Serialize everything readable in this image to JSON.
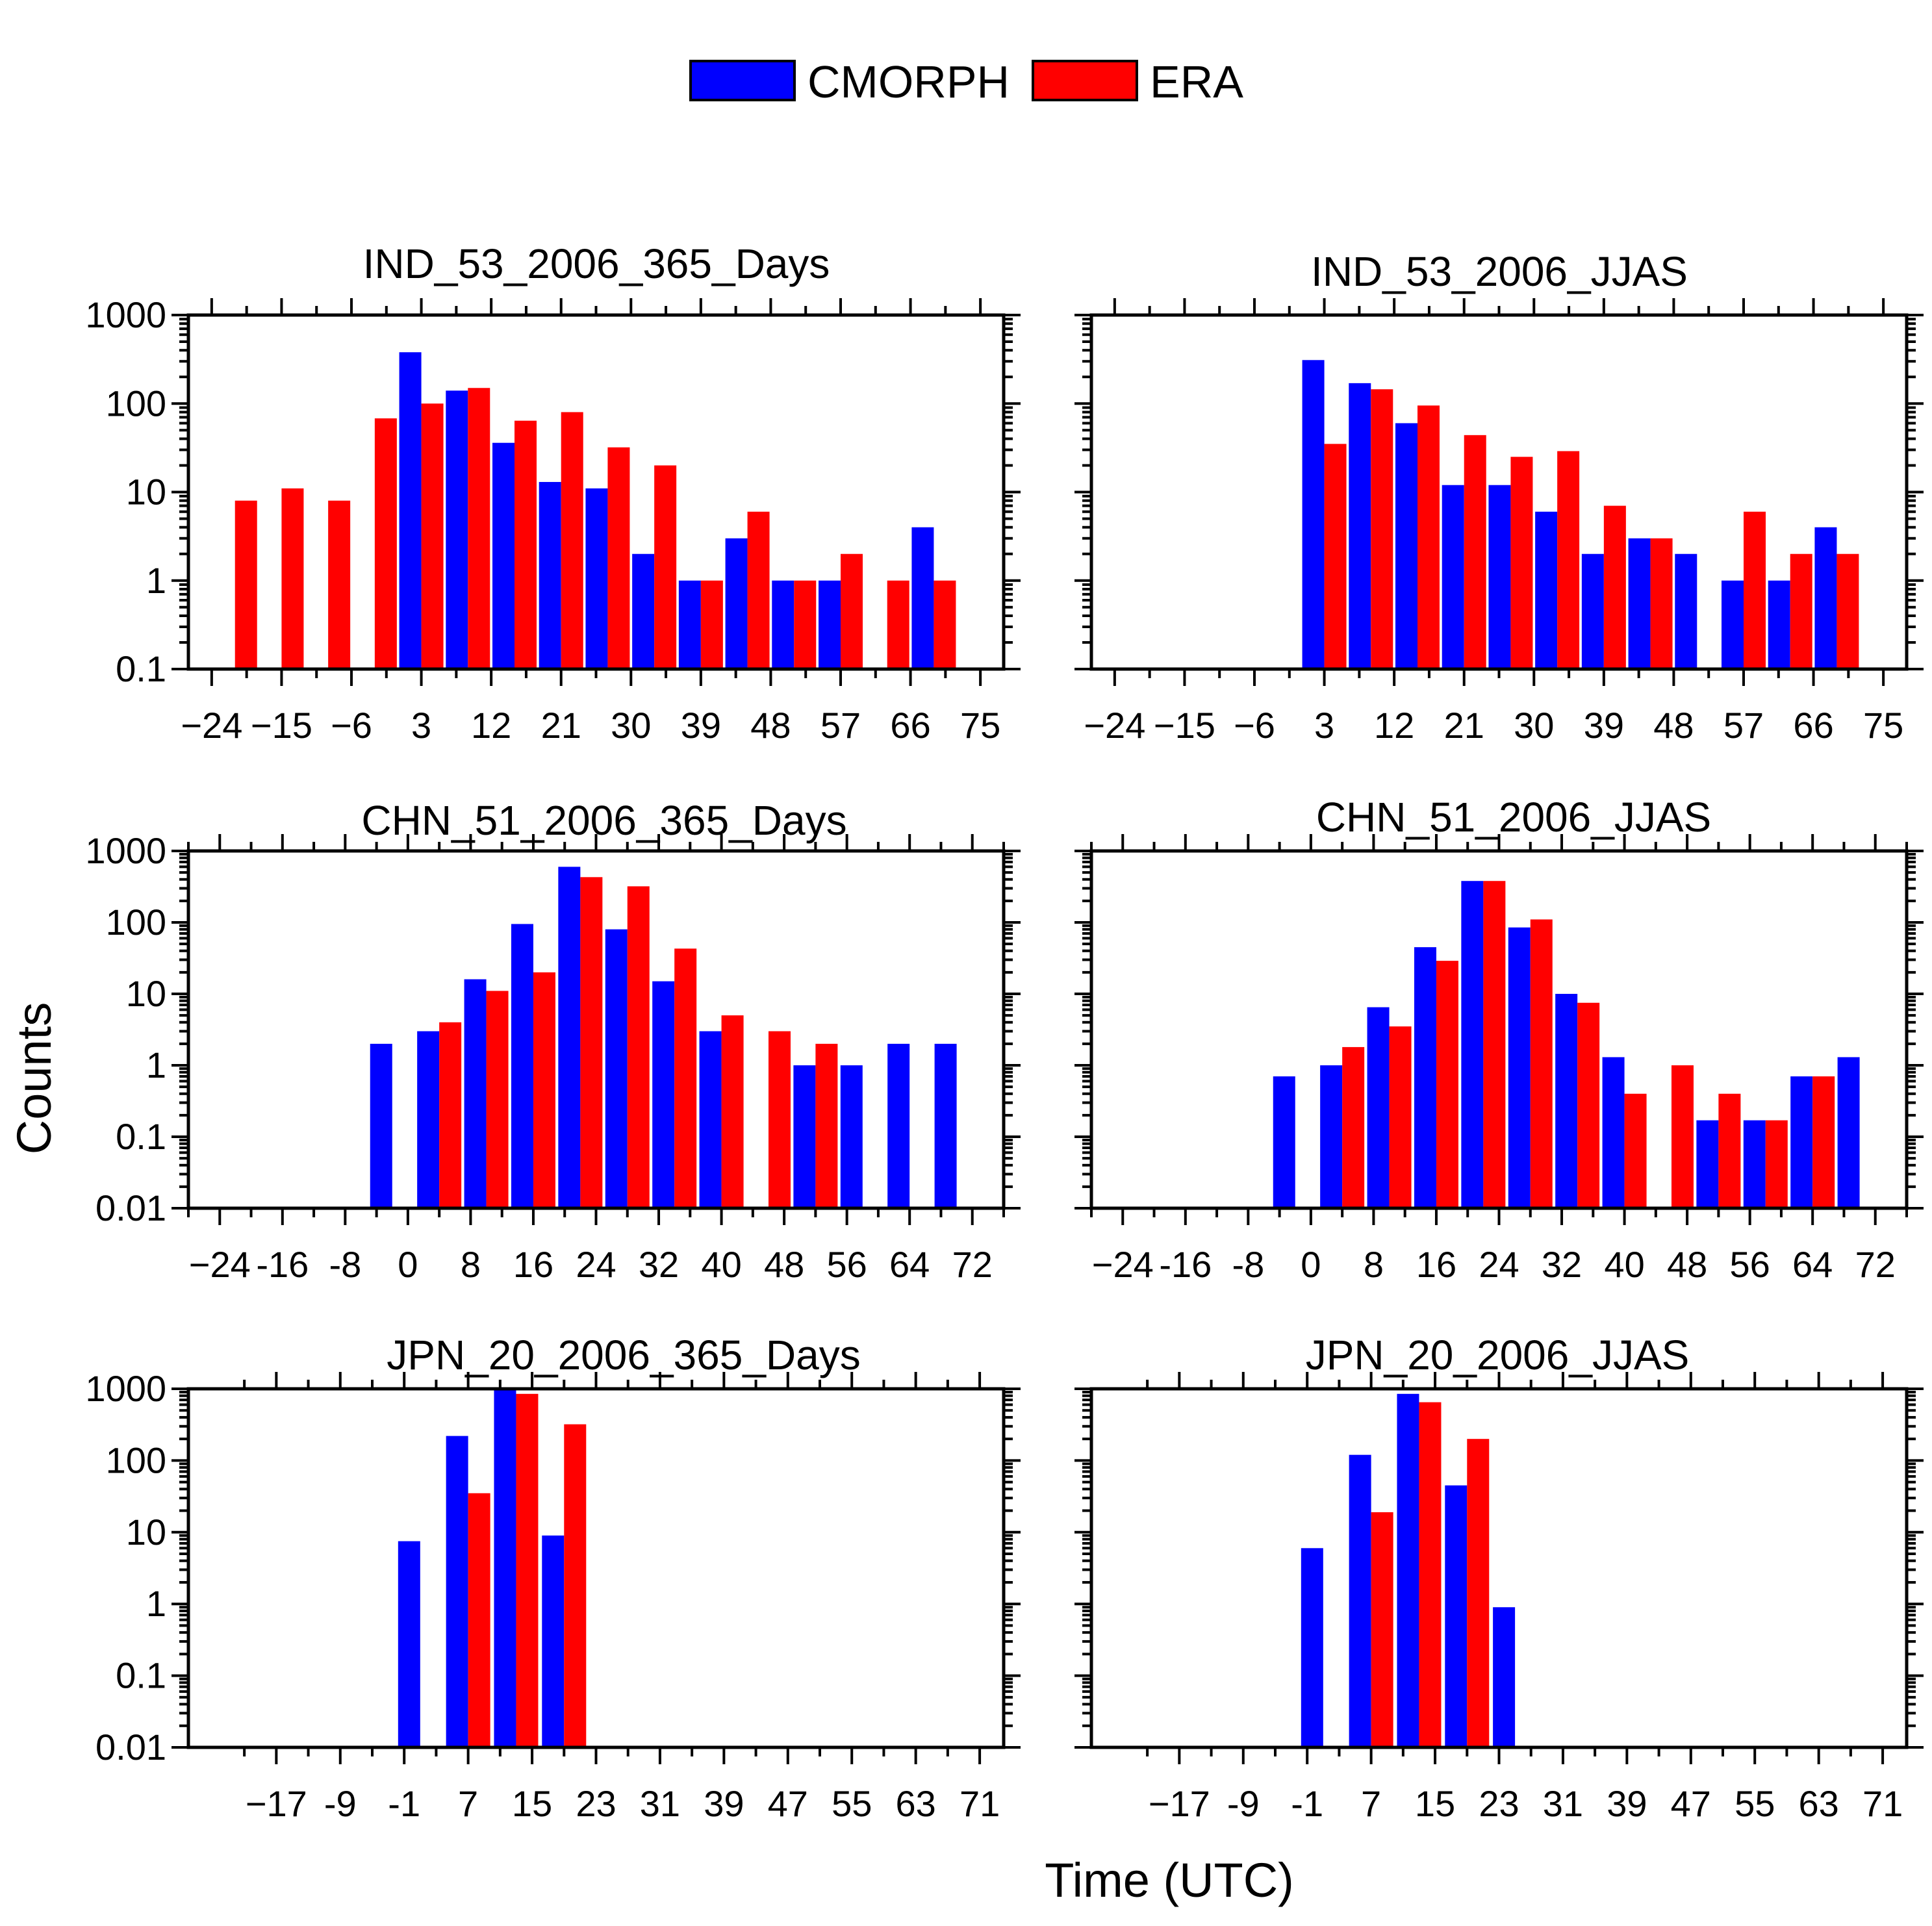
{
  "legend": {
    "items": [
      {
        "label": "CMORPH",
        "color": "#0000ff"
      },
      {
        "label": "ERA",
        "color": "#ff0000"
      }
    ]
  },
  "ylabel": "Counts",
  "xlabel": "Time (UTC)",
  "chart_data": [
    {
      "type": "bar",
      "title": "IND_53_2006_365_Days",
      "yscale": "log",
      "ylim": [
        0.1,
        1000
      ],
      "yticks": [
        0.1,
        1,
        10,
        100,
        1000
      ],
      "ytick_labels": [
        "0.1",
        "1",
        "10",
        "100",
        "1000"
      ],
      "xlim": [
        -27,
        78
      ],
      "xticks": [
        -24,
        -15,
        -6,
        3,
        12,
        21,
        30,
        39,
        48,
        57,
        66,
        75
      ],
      "xtick_labels": [
        "−24",
        "−15",
        "−6",
        "3",
        "12",
        "21",
        "30",
        "39",
        "48",
        "57",
        "66",
        "75"
      ],
      "x": [
        -21,
        -15,
        -9,
        -3,
        3,
        9,
        15,
        21,
        27,
        33,
        39,
        45,
        51,
        57,
        63,
        69
      ],
      "series": [
        {
          "name": "CMORPH",
          "values": [
            null,
            null,
            null,
            null,
            380,
            140,
            36,
            13,
            11,
            2,
            1,
            3,
            1,
            1,
            null,
            4
          ]
        },
        {
          "name": "ERA",
          "values": [
            8,
            11,
            8,
            68,
            100,
            150,
            64,
            80,
            32,
            20,
            1,
            6,
            1,
            2,
            1,
            1
          ]
        }
      ]
    },
    {
      "type": "bar",
      "title": "IND_53_2006_JJAS",
      "yscale": "log",
      "ylim": [
        0.1,
        1000
      ],
      "yticks": [
        0.1,
        1,
        10,
        100,
        1000
      ],
      "ytick_labels": [],
      "xlim": [
        -27,
        78
      ],
      "xticks": [
        -24,
        -15,
        -6,
        3,
        12,
        21,
        30,
        39,
        48,
        57,
        66,
        75
      ],
      "xtick_labels": [
        "−24",
        "−15",
        "−6",
        "3",
        "12",
        "21",
        "30",
        "39",
        "48",
        "57",
        "66",
        "75"
      ],
      "x": [
        -21,
        -15,
        -9,
        -3,
        3,
        9,
        15,
        21,
        27,
        33,
        39,
        45,
        51,
        57,
        63,
        69
      ],
      "series": [
        {
          "name": "CMORPH",
          "values": [
            null,
            null,
            null,
            null,
            310,
            170,
            60,
            12,
            12,
            6,
            2,
            3,
            2,
            1,
            1,
            4
          ]
        },
        {
          "name": "ERA",
          "values": [
            null,
            null,
            null,
            null,
            35,
            145,
            95,
            44,
            25,
            29,
            7,
            3,
            null,
            6,
            2,
            2
          ]
        }
      ]
    },
    {
      "type": "bar",
      "title": "CHN_51_2006_365_Days",
      "yscale": "log",
      "ylim": [
        0.01,
        1000
      ],
      "yticks": [
        0.01,
        0.1,
        1,
        10,
        100,
        1000
      ],
      "ytick_labels": [
        "0.01",
        "0.1",
        "1",
        "10",
        "100",
        "1000"
      ],
      "xlim": [
        -28,
        76
      ],
      "xticks": [
        -24,
        -16,
        -8,
        0,
        8,
        16,
        24,
        32,
        40,
        48,
        56,
        64,
        72
      ],
      "xtick_labels": [
        "−24",
        "-16",
        "-8",
        "0",
        "8",
        "16",
        "24",
        "32",
        "40",
        "48",
        "56",
        "64",
        "72"
      ],
      "x": [
        -2,
        4,
        10,
        16,
        22,
        28,
        34,
        40,
        46,
        52,
        58,
        64,
        70
      ],
      "series": [
        {
          "name": "CMORPH",
          "values": [
            2,
            3,
            16,
            95,
            600,
            80,
            15,
            3,
            null,
            1,
            1,
            2,
            2
          ]
        },
        {
          "name": "ERA",
          "values": [
            null,
            4,
            11,
            20,
            430,
            320,
            43,
            5,
            3,
            2,
            null,
            null,
            null
          ]
        }
      ]
    },
    {
      "type": "bar",
      "title": "CHN_51_2006_JJAS",
      "yscale": "log",
      "ylim": [
        0.01,
        1000
      ],
      "yticks": [
        0.01,
        0.1,
        1,
        10,
        100,
        1000
      ],
      "ytick_labels": [],
      "xlim": [
        -28,
        76
      ],
      "xticks": [
        -24,
        -16,
        -8,
        0,
        8,
        16,
        24,
        32,
        40,
        48,
        56,
        64,
        72
      ],
      "xtick_labels": [
        "−24",
        "-16",
        "-8",
        "0",
        "8",
        "16",
        "24",
        "32",
        "40",
        "48",
        "56",
        "64",
        "72"
      ],
      "x": [
        -2,
        4,
        10,
        16,
        22,
        28,
        34,
        40,
        46,
        52,
        58,
        64,
        70
      ],
      "series": [
        {
          "name": "CMORPH",
          "values": [
            0.7,
            1,
            6.5,
            45,
            380,
            85,
            10,
            1.3,
            null,
            0.17,
            0.17,
            0.7,
            1.3
          ]
        },
        {
          "name": "ERA",
          "values": [
            null,
            1.8,
            3.5,
            29,
            380,
            110,
            7.5,
            0.4,
            1,
            0.4,
            0.17,
            0.7,
            null
          ]
        }
      ]
    },
    {
      "type": "bar",
      "title": "JPN_20_2006_365_Days",
      "yscale": "log",
      "ylim": [
        0.01,
        1000
      ],
      "yticks": [
        0.01,
        0.1,
        1,
        10,
        100,
        1000
      ],
      "ytick_labels": [
        "0.01",
        "0.1",
        "1",
        "10",
        "100",
        "1000"
      ],
      "xlim": [
        -28,
        74
      ],
      "xticks": [
        -17,
        -9,
        -1,
        7,
        15,
        23,
        31,
        39,
        47,
        55,
        63,
        71
      ],
      "xtick_labels": [
        "−17",
        "-9",
        "-1",
        "7",
        "15",
        "23",
        "31",
        "39",
        "47",
        "55",
        "63",
        "71"
      ],
      "x": [
        1,
        7,
        13,
        19
      ],
      "series": [
        {
          "name": "CMORPH",
          "values": [
            7.5,
            220,
            1000,
            9
          ]
        },
        {
          "name": "ERA",
          "values": [
            null,
            35,
            850,
            320
          ]
        }
      ]
    },
    {
      "type": "bar",
      "title": "JPN_20_2006_JJAS",
      "yscale": "log",
      "ylim": [
        0.01,
        1000
      ],
      "yticks": [
        0.01,
        0.1,
        1,
        10,
        100,
        1000
      ],
      "ytick_labels": [],
      "xlim": [
        -28,
        74
      ],
      "xticks": [
        -17,
        -9,
        -1,
        7,
        15,
        23,
        31,
        39,
        47,
        55,
        63,
        71
      ],
      "xtick_labels": [
        "−17",
        "-9",
        "-1",
        "7",
        "15",
        "23",
        "31",
        "39",
        "47",
        "55",
        "63",
        "71"
      ],
      "x": [
        1,
        7,
        13,
        19,
        25
      ],
      "series": [
        {
          "name": "CMORPH",
          "values": [
            6,
            120,
            850,
            45,
            0.9
          ]
        },
        {
          "name": "ERA",
          "values": [
            null,
            19,
            650,
            200,
            null
          ]
        }
      ]
    }
  ]
}
